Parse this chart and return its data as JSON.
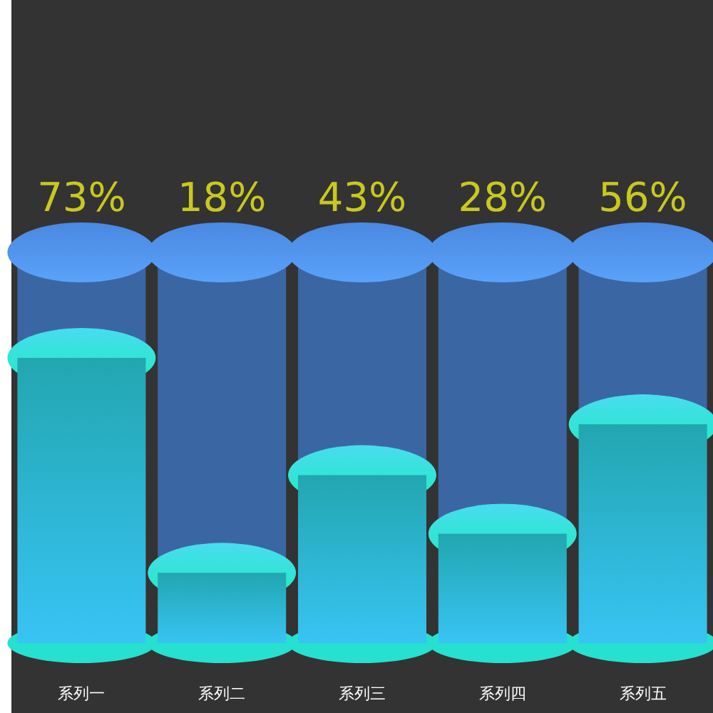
{
  "chart_data": {
    "type": "bar",
    "categories": [
      "系列一",
      "系列二",
      "系列三",
      "系列四",
      "系列五"
    ],
    "series": [
      {
        "color": "#22a6b0",
        "values": [
          73,
          18,
          43,
          28,
          56
        ],
        "value_labels": [
          "73%",
          "18%",
          "43%",
          "28%",
          "56%"
        ]
      }
    ]
  }
}
